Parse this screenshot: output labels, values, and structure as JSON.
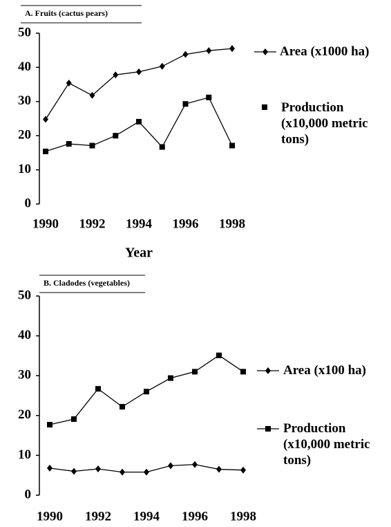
{
  "chart_data": [
    {
      "type": "line",
      "title": "A. Fruits (cactus pears)",
      "x_label": "Year",
      "x": [
        1990,
        1991,
        1992,
        1993,
        1994,
        1995,
        1996,
        1997,
        1998
      ],
      "xlim": [
        1990,
        1998
      ],
      "xticks": [
        1990,
        1992,
        1994,
        1996,
        1998
      ],
      "ylim": [
        0,
        50
      ],
      "yticks": [
        0,
        10,
        20,
        30,
        40,
        50
      ],
      "series": [
        {
          "name": "Area (x1000 ha)",
          "color": "#000000",
          "marker": "diamond",
          "values": [
            24.8,
            35.4,
            31.8,
            37.8,
            38.7,
            40.3,
            43.8,
            44.9,
            45.5
          ]
        },
        {
          "name": "Production (x10,000 metric tons)",
          "color": "#000000",
          "marker": "square",
          "values": [
            15.4,
            17.6,
            17.1,
            20.0,
            24.1,
            16.7,
            29.3,
            31.2,
            17.1
          ]
        }
      ]
    },
    {
      "type": "line",
      "title": "B. Cladodes (vegetables)",
      "x": [
        1990,
        1991,
        1992,
        1993,
        1994,
        1995,
        1996,
        1997,
        1998
      ],
      "xlim": [
        1990,
        1998
      ],
      "xticks": [
        1990,
        1992,
        1994,
        1996,
        1998
      ],
      "ylim": [
        0,
        50
      ],
      "yticks": [
        0,
        10,
        20,
        30,
        40,
        50
      ],
      "series": [
        {
          "name": "Area (x100 ha)",
          "color": "#000000",
          "marker": "diamond",
          "values": [
            6.8,
            6.0,
            6.6,
            5.8,
            5.8,
            7.4,
            7.7,
            6.5,
            6.3
          ]
        },
        {
          "name": "Production (x10,000 metric tons)",
          "color": "#000000",
          "marker": "square",
          "values": [
            17.7,
            19.1,
            26.7,
            22.2,
            26.0,
            29.4,
            31.0,
            35.1,
            31.0
          ]
        }
      ]
    }
  ]
}
